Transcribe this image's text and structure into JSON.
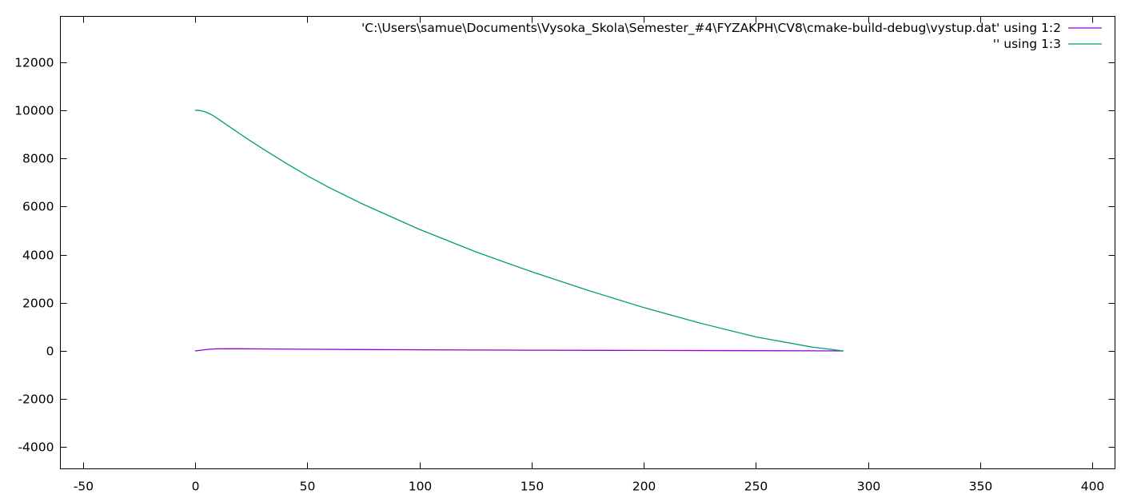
{
  "chart_data": {
    "type": "line",
    "title": "",
    "xlabel": "",
    "ylabel": "",
    "xlim": [
      -60,
      410
    ],
    "ylim": [
      -4900,
      13900
    ],
    "x_ticks": [
      -50,
      0,
      50,
      100,
      150,
      200,
      250,
      300,
      350,
      400
    ],
    "y_ticks": [
      -4000,
      -2000,
      0,
      2000,
      4000,
      6000,
      8000,
      10000,
      12000
    ],
    "x_tick_labels": [
      "-50",
      "0",
      "50",
      "100",
      "150",
      "200",
      "250",
      "300",
      "350",
      "400"
    ],
    "y_tick_labels": [
      "-4000",
      "-2000",
      "0",
      "2000",
      "4000",
      "6000",
      "8000",
      "10000",
      "12000"
    ],
    "grid": false,
    "legend_position": "top-right",
    "series": [
      {
        "name": "'C:\\Users\\samue\\Documents\\Vysoka_Skola\\Semester_#4\\FYZAKPH\\CV8\\cmake-build-debug\\vystup.dat' using 1:2",
        "color": "#9400d3",
        "x": [
          0,
          2,
          4,
          6,
          8,
          10,
          15,
          20,
          30,
          50,
          75,
          100,
          150,
          200,
          250,
          289
        ],
        "y": [
          0,
          20,
          45,
          65,
          78,
          85,
          90,
          88,
          82,
          70,
          55,
          45,
          30,
          20,
          10,
          0
        ]
      },
      {
        "name": "'' using 1:3",
        "color": "#009e73",
        "x": [
          0,
          2,
          4,
          6,
          8,
          10,
          15,
          20,
          25,
          30,
          40,
          50,
          60,
          75,
          100,
          125,
          150,
          175,
          200,
          225,
          250,
          275,
          289
        ],
        "y": [
          10000,
          9990,
          9950,
          9880,
          9780,
          9660,
          9340,
          9020,
          8710,
          8410,
          7830,
          7280,
          6780,
          6090,
          5050,
          4120,
          3290,
          2520,
          1800,
          1160,
          580,
          160,
          0
        ]
      }
    ]
  }
}
